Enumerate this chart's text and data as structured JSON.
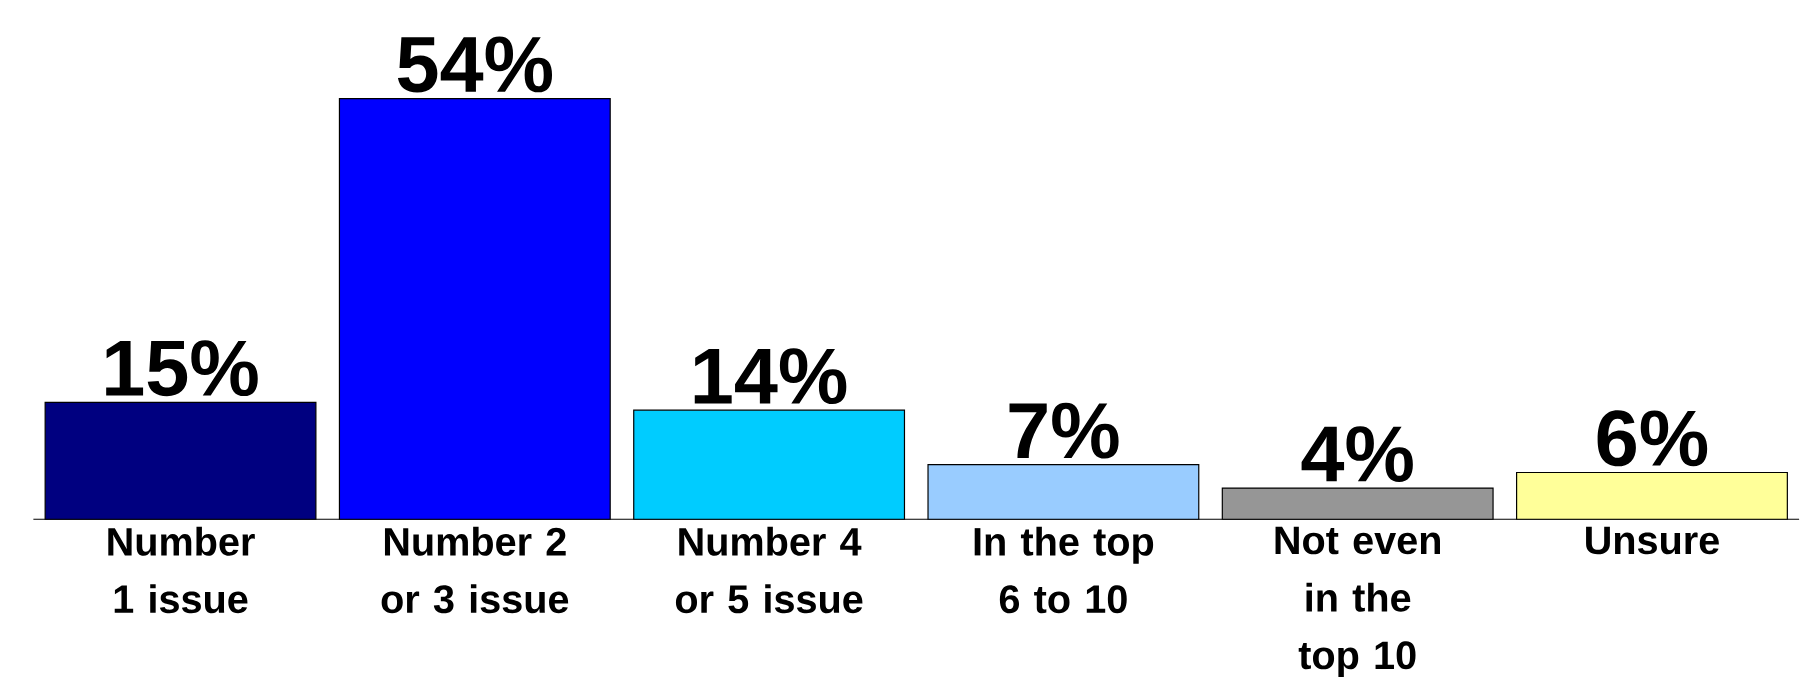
{
  "chart_data": {
    "type": "bar",
    "categories": [
      "Number 1 issue",
      "Number 2 or 3 issue",
      "Number 4 or 5 issue",
      "In the top 6 to 10",
      "Not even in the top 10",
      "Unsure"
    ],
    "values": [
      15,
      54,
      14,
      7,
      4,
      6
    ],
    "colors": [
      "#000080",
      "#0000ff",
      "#00ccff",
      "#99ccff",
      "#969696",
      "#ffff99"
    ],
    "value_labels": [
      "15%",
      "54%",
      "14%",
      "7%",
      "4%",
      "6%"
    ]
  }
}
